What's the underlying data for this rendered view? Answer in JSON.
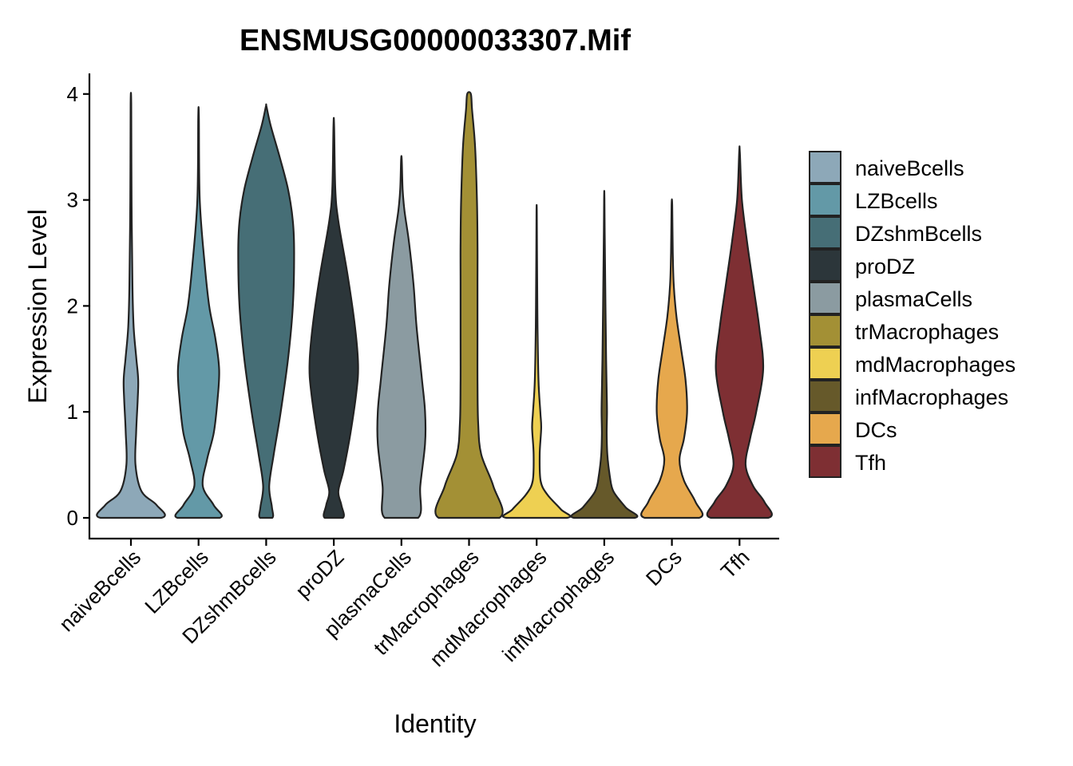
{
  "chart_data": {
    "type": "violin",
    "title": "ENSMUSG00000033307.Mif",
    "xlabel": "Identity",
    "ylabel": "Expression Level",
    "ylim": [
      -0.2,
      4.2
    ],
    "yticks": [
      0,
      1,
      2,
      3,
      4
    ],
    "categories": [
      "naiveBcells",
      "LZBcells",
      "DZshmBcells",
      "proDZ",
      "plasmaCells",
      "trMacrophages",
      "mdMacrophages",
      "infMacrophages",
      "DCs",
      "Tfh"
    ],
    "legend_position": "right",
    "series": [
      {
        "category": "naiveBcells",
        "color": "#8DA8B8",
        "max": 3.9,
        "density": [
          [
            0,
            1.0
          ],
          [
            0.12,
            0.85
          ],
          [
            0.25,
            0.35
          ],
          [
            0.5,
            0.15
          ],
          [
            0.8,
            0.17
          ],
          [
            1.1,
            0.22
          ],
          [
            1.3,
            0.24
          ],
          [
            1.5,
            0.18
          ],
          [
            1.8,
            0.09
          ],
          [
            2.2,
            0.05
          ],
          [
            3.0,
            0.02
          ],
          [
            3.9,
            0.01
          ]
        ]
      },
      {
        "category": "LZBcells",
        "color": "#6399A7",
        "max": 3.78,
        "density": [
          [
            0,
            0.7
          ],
          [
            0.12,
            0.5
          ],
          [
            0.3,
            0.14
          ],
          [
            0.55,
            0.28
          ],
          [
            0.8,
            0.5
          ],
          [
            1.1,
            0.62
          ],
          [
            1.4,
            0.68
          ],
          [
            1.7,
            0.55
          ],
          [
            2.0,
            0.35
          ],
          [
            2.4,
            0.2
          ],
          [
            3.0,
            0.04
          ],
          [
            3.78,
            0.01
          ]
        ]
      },
      {
        "category": "DZshmBcells",
        "color": "#466E76",
        "max": 3.88,
        "density": [
          [
            0,
            0.2
          ],
          [
            0.1,
            0.19
          ],
          [
            0.3,
            0.1
          ],
          [
            0.6,
            0.25
          ],
          [
            1.0,
            0.48
          ],
          [
            1.5,
            0.72
          ],
          [
            2.0,
            0.88
          ],
          [
            2.5,
            0.92
          ],
          [
            2.8,
            0.88
          ],
          [
            3.1,
            0.72
          ],
          [
            3.4,
            0.45
          ],
          [
            3.7,
            0.15
          ],
          [
            3.88,
            0.01
          ]
        ]
      },
      {
        "category": "proDZ",
        "color": "#2C363A",
        "max": 3.7,
        "density": [
          [
            0,
            0.3
          ],
          [
            0.12,
            0.25
          ],
          [
            0.25,
            0.15
          ],
          [
            0.45,
            0.32
          ],
          [
            0.8,
            0.55
          ],
          [
            1.2,
            0.75
          ],
          [
            1.45,
            0.8
          ],
          [
            1.8,
            0.7
          ],
          [
            2.3,
            0.45
          ],
          [
            2.8,
            0.15
          ],
          [
            3.1,
            0.05
          ],
          [
            3.7,
            0.01
          ]
        ]
      },
      {
        "category": "plasmaCells",
        "color": "#8B9BA1",
        "max": 3.38,
        "density": [
          [
            0,
            0.55
          ],
          [
            0.3,
            0.62
          ],
          [
            0.7,
            0.78
          ],
          [
            1.0,
            0.78
          ],
          [
            1.3,
            0.68
          ],
          [
            1.8,
            0.5
          ],
          [
            2.2,
            0.4
          ],
          [
            2.6,
            0.25
          ],
          [
            2.9,
            0.1
          ],
          [
            3.1,
            0.04
          ],
          [
            3.38,
            0.01
          ]
        ]
      },
      {
        "category": "trMacrophages",
        "color": "#A39035",
        "max": 4.0,
        "density": [
          [
            0,
            1.0
          ],
          [
            0.3,
            0.8
          ],
          [
            0.6,
            0.4
          ],
          [
            0.9,
            0.3
          ],
          [
            1.3,
            0.28
          ],
          [
            1.7,
            0.28
          ],
          [
            2.2,
            0.28
          ],
          [
            2.6,
            0.28
          ],
          [
            3.0,
            0.26
          ],
          [
            3.5,
            0.2
          ],
          [
            3.85,
            0.1
          ],
          [
            4.0,
            0.06
          ]
        ]
      },
      {
        "category": "mdMacrophages",
        "color": "#EED052",
        "max": 2.88,
        "density": [
          [
            0,
            1.0
          ],
          [
            0.08,
            0.8
          ],
          [
            0.22,
            0.35
          ],
          [
            0.35,
            0.13
          ],
          [
            0.6,
            0.1
          ],
          [
            0.85,
            0.15
          ],
          [
            1.0,
            0.12
          ],
          [
            1.3,
            0.06
          ],
          [
            1.8,
            0.03
          ],
          [
            2.3,
            0.015
          ],
          [
            2.88,
            0.005
          ]
        ]
      },
      {
        "category": "infMacrophages",
        "color": "#66592A",
        "max": 3.02,
        "density": [
          [
            0,
            1.0
          ],
          [
            0.1,
            0.7
          ],
          [
            0.25,
            0.3
          ],
          [
            0.4,
            0.18
          ],
          [
            0.6,
            0.1
          ],
          [
            0.8,
            0.08
          ],
          [
            1.0,
            0.09
          ],
          [
            1.2,
            0.08
          ],
          [
            1.5,
            0.06
          ],
          [
            2.0,
            0.04
          ],
          [
            2.5,
            0.02
          ],
          [
            3.02,
            0.005
          ]
        ]
      },
      {
        "category": "DCs",
        "color": "#E6A84D",
        "max": 2.95,
        "density": [
          [
            0,
            0.9
          ],
          [
            0.15,
            0.78
          ],
          [
            0.35,
            0.4
          ],
          [
            0.55,
            0.25
          ],
          [
            0.75,
            0.4
          ],
          [
            1.0,
            0.5
          ],
          [
            1.3,
            0.45
          ],
          [
            1.6,
            0.3
          ],
          [
            1.9,
            0.15
          ],
          [
            2.2,
            0.06
          ],
          [
            2.5,
            0.03
          ],
          [
            2.95,
            0.01
          ]
        ]
      },
      {
        "category": "Tfh",
        "color": "#7E2F33",
        "max": 3.45,
        "density": [
          [
            0,
            0.95
          ],
          [
            0.15,
            0.82
          ],
          [
            0.3,
            0.45
          ],
          [
            0.5,
            0.2
          ],
          [
            0.75,
            0.35
          ],
          [
            1.0,
            0.55
          ],
          [
            1.4,
            0.78
          ],
          [
            1.8,
            0.65
          ],
          [
            2.2,
            0.45
          ],
          [
            2.6,
            0.25
          ],
          [
            3.0,
            0.08
          ],
          [
            3.45,
            0.01
          ]
        ]
      }
    ]
  }
}
